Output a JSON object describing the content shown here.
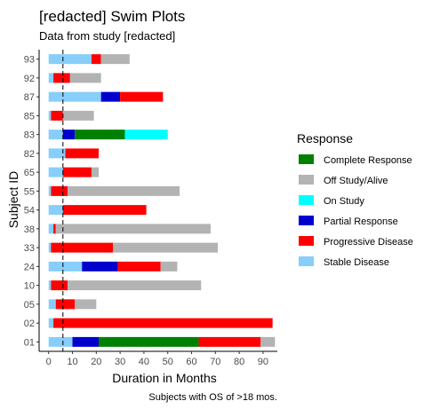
{
  "chart_data": {
    "type": "bar",
    "orientation": "horizontal-stacked",
    "title": "[redacted] Swim Plots",
    "subtitle": "Data from study [redacted]",
    "xlabel": "Duration in Months",
    "ylabel": "Subject ID",
    "caption": "Subjects with OS of >18 mos.",
    "xlim": [
      -4,
      96
    ],
    "x_ticks": [
      0,
      10,
      20,
      30,
      40,
      50,
      60,
      70,
      80,
      90
    ],
    "reference_line_x": 6,
    "legend": {
      "title": "Response",
      "placement": "right",
      "entries": [
        {
          "label": "Complete Response",
          "color": "#008000"
        },
        {
          "label": "Off Study/Alive",
          "color": "#b3b3b3"
        },
        {
          "label": "On Study",
          "color": "#00ffff"
        },
        {
          "label": "Partial Response",
          "color": "#0000cd"
        },
        {
          "label": "Progressive Disease",
          "color": "#ff0000"
        },
        {
          "label": "Stable Disease",
          "color": "#87cefa"
        }
      ]
    },
    "subjects": [
      {
        "id": "93",
        "segments": [
          {
            "s": 0,
            "e": 18,
            "r": "Stable Disease"
          },
          {
            "s": 18,
            "e": 22,
            "r": "Progressive Disease"
          },
          {
            "s": 22,
            "e": 34,
            "r": "Off Study/Alive"
          }
        ]
      },
      {
        "id": "92",
        "segments": [
          {
            "s": 0,
            "e": 2,
            "r": "Stable Disease"
          },
          {
            "s": 2,
            "e": 9,
            "r": "Progressive Disease"
          },
          {
            "s": 9,
            "e": 22,
            "r": "Off Study/Alive"
          }
        ]
      },
      {
        "id": "87",
        "segments": [
          {
            "s": 0,
            "e": 22,
            "r": "Stable Disease"
          },
          {
            "s": 22,
            "e": 30,
            "r": "Partial Response"
          },
          {
            "s": 30,
            "e": 48,
            "r": "Progressive Disease"
          }
        ]
      },
      {
        "id": "85",
        "segments": [
          {
            "s": 0,
            "e": 1,
            "r": "Stable Disease"
          },
          {
            "s": 1,
            "e": 6,
            "r": "Progressive Disease"
          },
          {
            "s": 6,
            "e": 19,
            "r": "Off Study/Alive"
          }
        ]
      },
      {
        "id": "83",
        "segments": [
          {
            "s": 0,
            "e": 6,
            "r": "Stable Disease"
          },
          {
            "s": 6,
            "e": 11,
            "r": "Partial Response"
          },
          {
            "s": 11,
            "e": 32,
            "r": "Complete Response"
          },
          {
            "s": 32,
            "e": 50,
            "r": "On Study"
          }
        ]
      },
      {
        "id": "82",
        "segments": [
          {
            "s": 0,
            "e": 7,
            "r": "Stable Disease"
          },
          {
            "s": 7,
            "e": 21,
            "r": "Progressive Disease"
          }
        ]
      },
      {
        "id": "65",
        "segments": [
          {
            "s": 0,
            "e": 6,
            "r": "Stable Disease"
          },
          {
            "s": 6,
            "e": 18,
            "r": "Progressive Disease"
          },
          {
            "s": 18,
            "e": 21,
            "r": "Off Study/Alive"
          }
        ]
      },
      {
        "id": "55",
        "segments": [
          {
            "s": 0,
            "e": 1,
            "r": "Stable Disease"
          },
          {
            "s": 1,
            "e": 8,
            "r": "Progressive Disease"
          },
          {
            "s": 8,
            "e": 55,
            "r": "Off Study/Alive"
          }
        ]
      },
      {
        "id": "54",
        "segments": [
          {
            "s": 0,
            "e": 6,
            "r": "Stable Disease"
          },
          {
            "s": 6,
            "e": 41,
            "r": "Progressive Disease"
          }
        ]
      },
      {
        "id": "38",
        "segments": [
          {
            "s": 0,
            "e": 2,
            "r": "Stable Disease"
          },
          {
            "s": 2,
            "e": 3,
            "r": "Progressive Disease"
          },
          {
            "s": 3,
            "e": 68,
            "r": "Off Study/Alive"
          }
        ]
      },
      {
        "id": "33",
        "segments": [
          {
            "s": 0,
            "e": 1,
            "r": "Stable Disease"
          },
          {
            "s": 1,
            "e": 27,
            "r": "Progressive Disease"
          },
          {
            "s": 27,
            "e": 71,
            "r": "Off Study/Alive"
          }
        ]
      },
      {
        "id": "24",
        "segments": [
          {
            "s": 0,
            "e": 14,
            "r": "Stable Disease"
          },
          {
            "s": 14,
            "e": 29,
            "r": "Partial Response"
          },
          {
            "s": 29,
            "e": 47,
            "r": "Progressive Disease"
          },
          {
            "s": 47,
            "e": 54,
            "r": "Off Study/Alive"
          }
        ]
      },
      {
        "id": "10",
        "segments": [
          {
            "s": 0,
            "e": 1,
            "r": "Stable Disease"
          },
          {
            "s": 1,
            "e": 8,
            "r": "Progressive Disease"
          },
          {
            "s": 8,
            "e": 64,
            "r": "Off Study/Alive"
          }
        ]
      },
      {
        "id": "05",
        "segments": [
          {
            "s": 0,
            "e": 3,
            "r": "Stable Disease"
          },
          {
            "s": 3,
            "e": 11,
            "r": "Progressive Disease"
          },
          {
            "s": 11,
            "e": 20,
            "r": "Off Study/Alive"
          }
        ]
      },
      {
        "id": "02",
        "segments": [
          {
            "s": 0,
            "e": 2,
            "r": "Stable Disease"
          },
          {
            "s": 2,
            "e": 94,
            "r": "Progressive Disease"
          }
        ]
      },
      {
        "id": "01",
        "segments": [
          {
            "s": 0,
            "e": 10,
            "r": "Stable Disease"
          },
          {
            "s": 10,
            "e": 21,
            "r": "Partial Response"
          },
          {
            "s": 21,
            "e": 63,
            "r": "Complete Response"
          },
          {
            "s": 63,
            "e": 89,
            "r": "Progressive Disease"
          },
          {
            "s": 89,
            "e": 95,
            "r": "Off Study/Alive"
          }
        ]
      }
    ]
  }
}
